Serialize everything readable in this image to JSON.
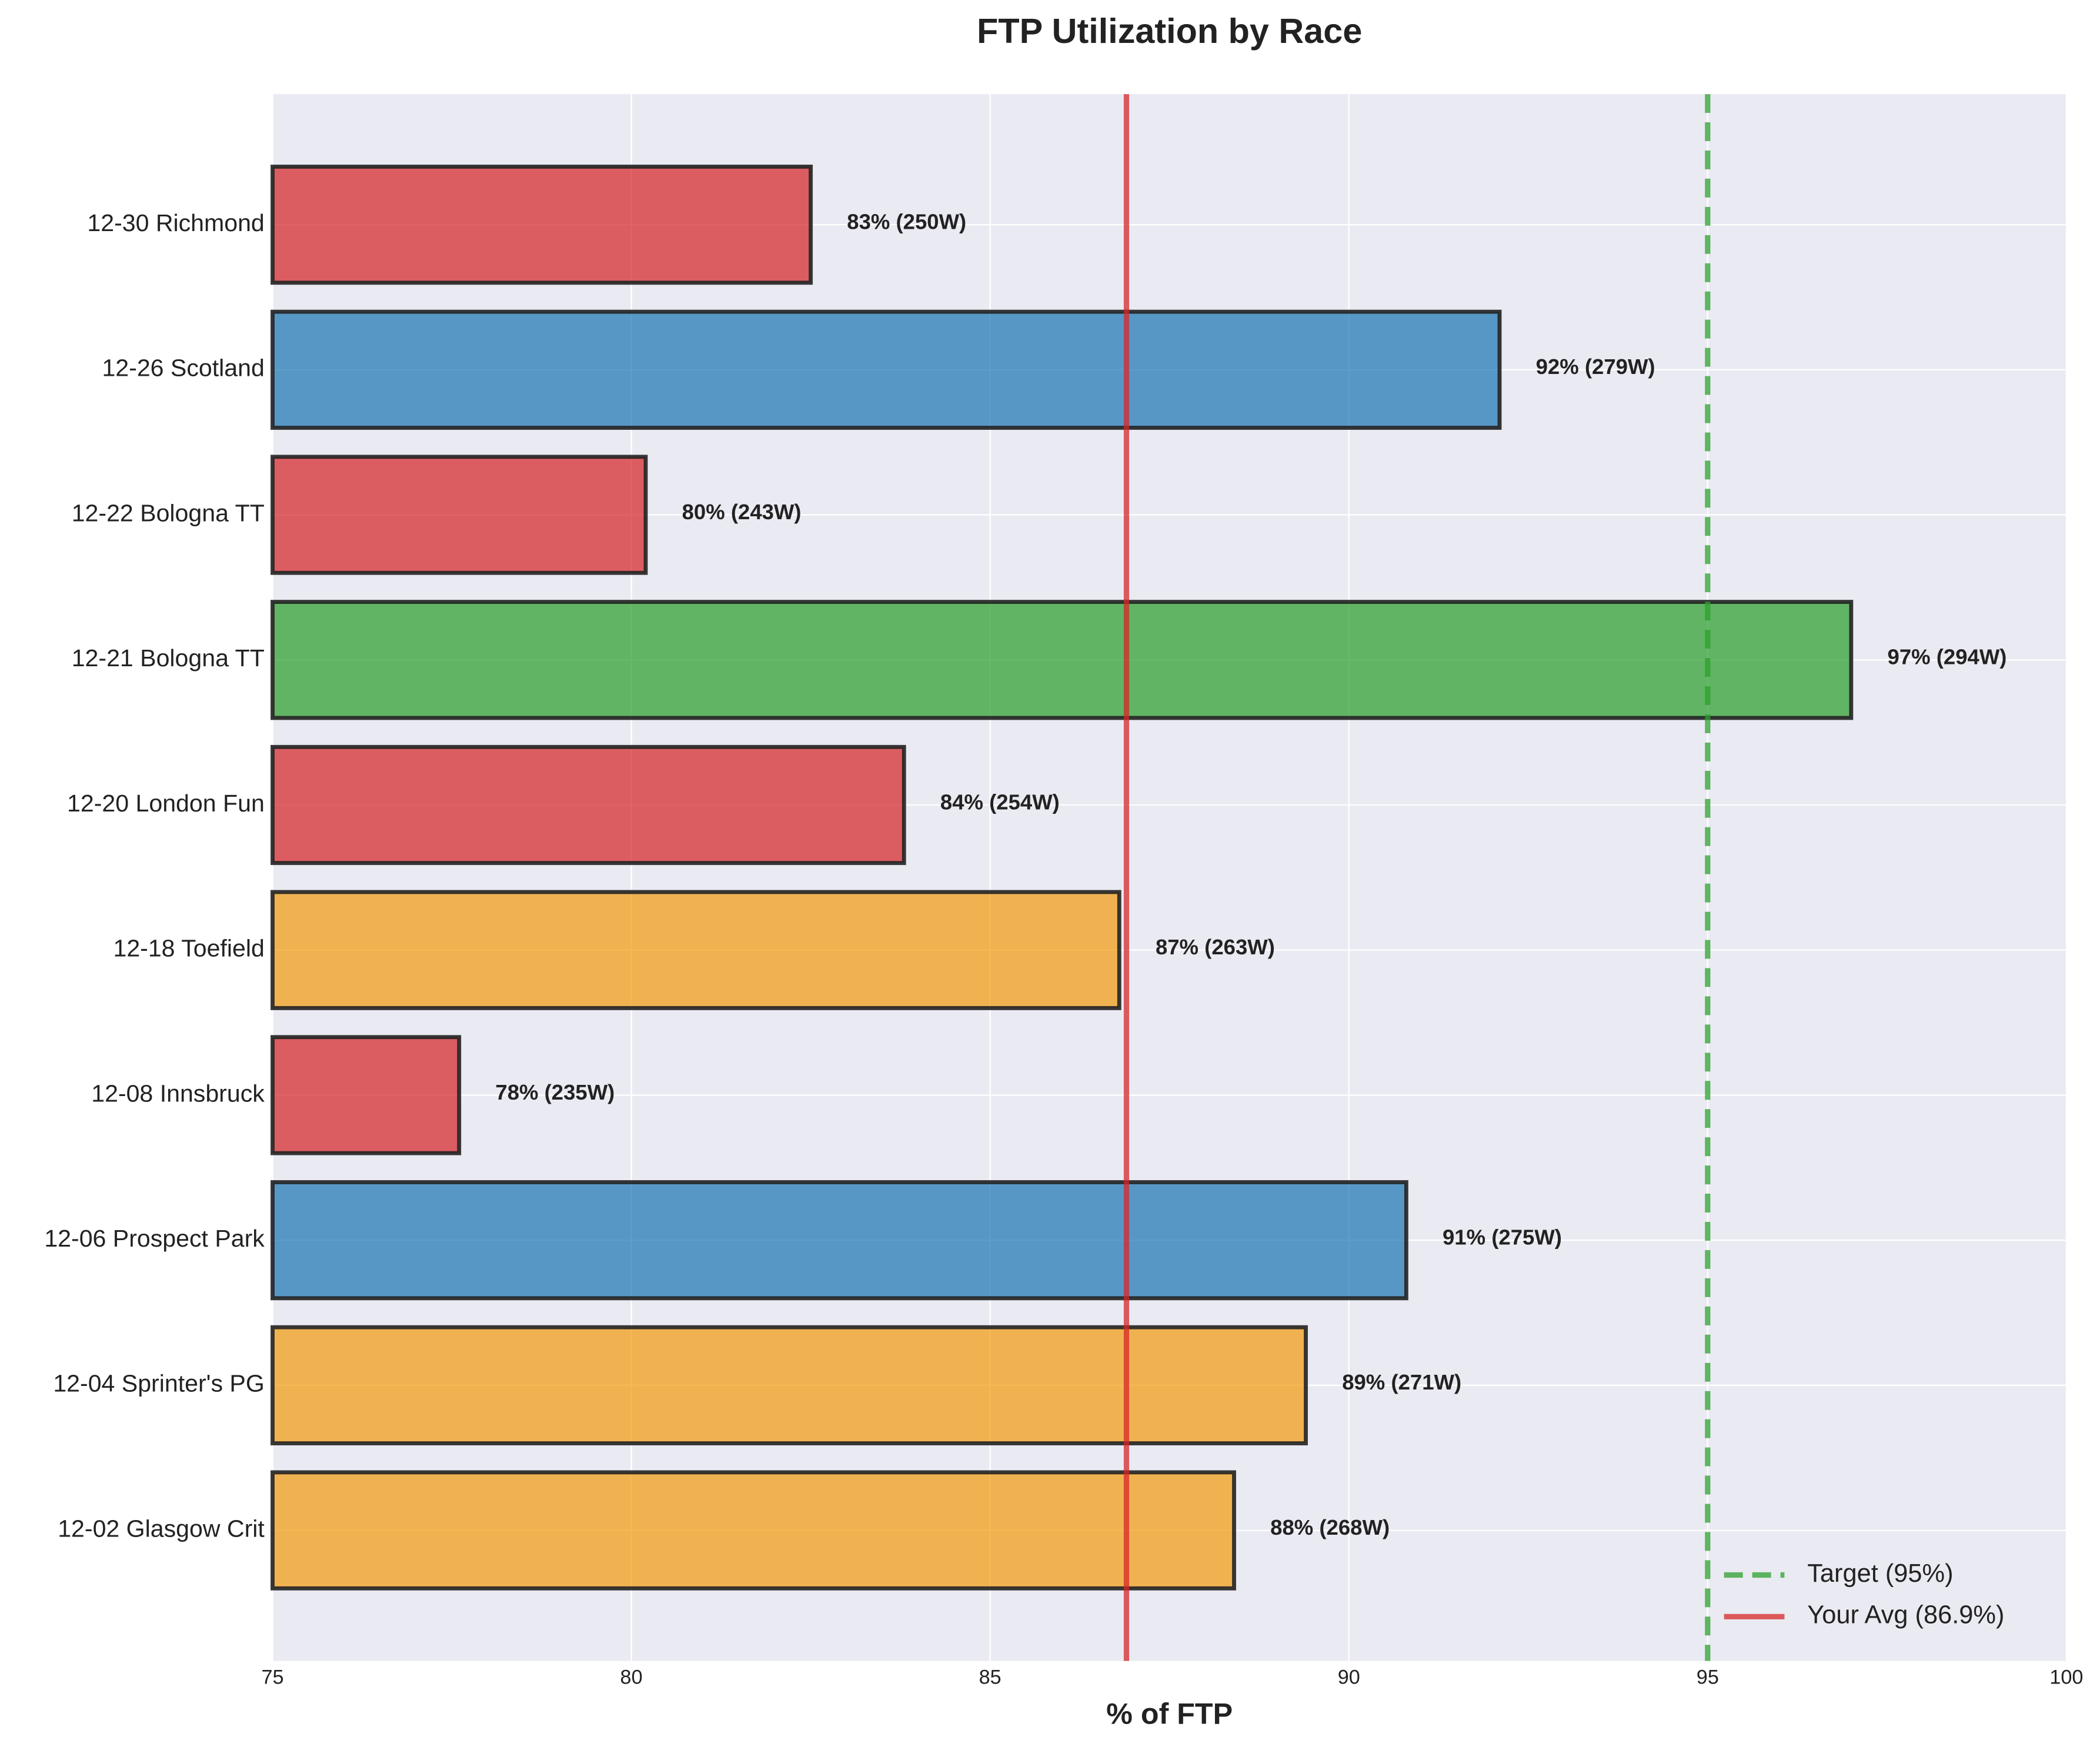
{
  "chart_data": {
    "type": "bar",
    "orientation": "horizontal",
    "title": "FTP Utilization by Race",
    "x_label": "% of FTP",
    "categories": [
      "12-30 Richmond",
      "12-26 Scotland",
      "12-22 Bologna TT",
      "12-21 Bologna TT",
      "12-20 London Fun",
      "12-18 Toefield",
      "12-08 Innsbruck",
      "12-06 Prospect Park",
      "12-04 Sprinter's PG",
      "12-02 Glasgow Crit"
    ],
    "values": [
      82.5,
      92.1,
      80.2,
      97.0,
      83.8,
      86.8,
      77.6,
      90.8,
      89.4,
      88.4
    ],
    "value_labels": [
      "83% (250W)",
      "92% (279W)",
      "80% (243W)",
      "97% (294W)",
      "84% (254W)",
      "87% (263W)",
      "78% (235W)",
      "91% (275W)",
      "89% (271W)",
      "88% (268W)"
    ],
    "colors": [
      "#d62728",
      "#1f77b4",
      "#d62728",
      "#2ca02c",
      "#d62728",
      "#f39c12",
      "#d62728",
      "#1f77b4",
      "#f39c12",
      "#f39c12"
    ],
    "xlim": [
      75,
      100
    ],
    "xticks": [
      75,
      80,
      85,
      90,
      95,
      100
    ],
    "grid": true,
    "reference_lines": [
      {
        "name": "Target (95%)",
        "value": 95,
        "color": "#2ca02c",
        "style": "dashed"
      },
      {
        "name": "Your Avg (86.9%)",
        "value": 86.9,
        "color": "#d62728",
        "style": "solid"
      }
    ],
    "legend": "lower right"
  }
}
